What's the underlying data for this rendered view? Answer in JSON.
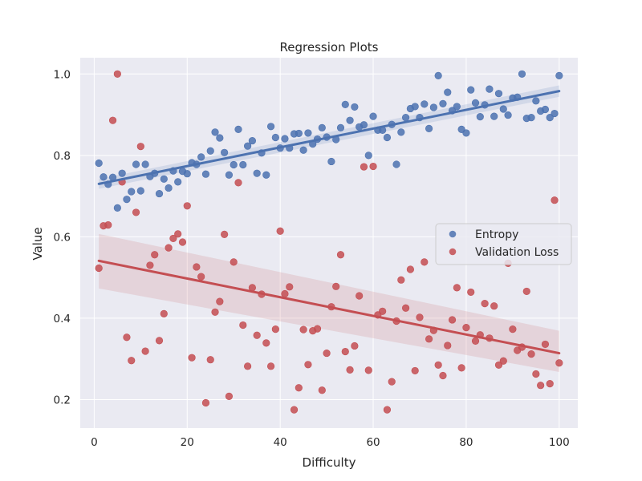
{
  "chart_data": {
    "type": "scatter",
    "title": "Regression Plots",
    "xlabel": "Difficulty",
    "ylabel": "Value",
    "xlim": [
      -3,
      104
    ],
    "ylim": [
      0.13,
      1.04
    ],
    "xticks": [
      0,
      20,
      40,
      60,
      80,
      100
    ],
    "yticks": [
      0.2,
      0.4,
      0.6,
      0.8,
      1.0
    ],
    "xtick_labels": [
      "0",
      "20",
      "40",
      "60",
      "80",
      "100"
    ],
    "ytick_labels": [
      "0.2",
      "0.4",
      "0.6",
      "0.8",
      "1.0"
    ],
    "grid": true,
    "legend_position": "center-right",
    "colors": {
      "background": "#eaeaf2",
      "grid": "#ffffff",
      "entropy": "#4c72b0",
      "validation_loss": "#c44e52"
    },
    "series": [
      {
        "name": "Entropy",
        "color": "#4c72b0",
        "regression": {
          "x": [
            1,
            100
          ],
          "y": [
            0.73,
            0.958
          ]
        },
        "band": {
          "lower": [
            0.718,
            0.944
          ],
          "upper": [
            0.742,
            0.972
          ]
        },
        "x": [
          1,
          2,
          3,
          4,
          5,
          6,
          7,
          8,
          9,
          10,
          11,
          12,
          13,
          14,
          15,
          16,
          17,
          18,
          19,
          20,
          21,
          22,
          23,
          24,
          25,
          26,
          27,
          28,
          29,
          30,
          31,
          32,
          33,
          34,
          35,
          36,
          37,
          38,
          39,
          40,
          41,
          42,
          43,
          44,
          45,
          46,
          47,
          48,
          49,
          50,
          51,
          52,
          53,
          54,
          55,
          56,
          57,
          58,
          59,
          60,
          61,
          62,
          63,
          64,
          65,
          66,
          67,
          68,
          69,
          70,
          71,
          72,
          73,
          74,
          75,
          76,
          77,
          78,
          79,
          80,
          81,
          82,
          83,
          84,
          85,
          86,
          87,
          88,
          89,
          90,
          91,
          92,
          93,
          94,
          95,
          96,
          97,
          98,
          99,
          100
        ],
        "y": [
          0.781,
          0.747,
          0.729,
          0.746,
          0.671,
          0.756,
          0.692,
          0.711,
          0.778,
          0.713,
          0.778,
          0.748,
          0.756,
          0.706,
          0.742,
          0.72,
          0.762,
          0.735,
          0.761,
          0.755,
          0.782,
          0.778,
          0.796,
          0.754,
          0.811,
          0.857,
          0.843,
          0.807,
          0.752,
          0.777,
          0.864,
          0.777,
          0.823,
          0.836,
          0.756,
          0.806,
          0.752,
          0.871,
          0.844,
          0.818,
          0.841,
          0.818,
          0.853,
          0.854,
          0.813,
          0.855,
          0.828,
          0.84,
          0.868,
          0.845,
          0.785,
          0.839,
          0.868,
          0.925,
          0.886,
          0.919,
          0.87,
          0.875,
          0.8,
          0.896,
          0.862,
          0.862,
          0.844,
          0.876,
          0.778,
          0.857,
          0.893,
          0.915,
          0.92,
          0.893,
          0.926,
          0.866,
          0.918,
          0.996,
          0.927,
          0.955,
          0.91,
          0.92,
          0.864,
          0.855,
          0.961,
          0.929,
          0.895,
          0.924,
          0.963,
          0.896,
          0.952,
          0.914,
          0.899,
          0.941,
          0.943,
          1.0,
          0.891,
          0.893,
          0.934,
          0.909,
          0.913,
          0.893,
          0.903,
          0.996
        ]
      },
      {
        "name": "Validation Loss",
        "color": "#c44e52",
        "regression": {
          "x": [
            1,
            100
          ],
          "y": [
            0.541,
            0.314
          ]
        },
        "band": {
          "lower": [
            0.473,
            0.268
          ],
          "upper": [
            0.607,
            0.369
          ]
        },
        "x": [
          1,
          2,
          3,
          4,
          5,
          6,
          7,
          8,
          9,
          10,
          11,
          12,
          13,
          14,
          15,
          16,
          17,
          18,
          19,
          20,
          21,
          22,
          23,
          24,
          25,
          26,
          27,
          28,
          29,
          30,
          31,
          32,
          33,
          34,
          35,
          36,
          37,
          38,
          39,
          40,
          41,
          42,
          43,
          44,
          45,
          46,
          47,
          48,
          49,
          50,
          51,
          52,
          53,
          54,
          55,
          56,
          57,
          58,
          59,
          60,
          61,
          62,
          63,
          64,
          65,
          66,
          67,
          68,
          69,
          70,
          71,
          72,
          73,
          74,
          75,
          76,
          77,
          78,
          79,
          80,
          81,
          82,
          83,
          84,
          85,
          86,
          87,
          88,
          89,
          90,
          91,
          92,
          93,
          94,
          95,
          96,
          97,
          98,
          99,
          100
        ],
        "y": [
          0.523,
          0.627,
          0.629,
          0.886,
          1.0,
          0.735,
          0.353,
          0.296,
          0.66,
          0.822,
          0.319,
          0.53,
          0.556,
          0.345,
          0.411,
          0.573,
          0.596,
          0.607,
          0.587,
          0.676,
          0.303,
          0.526,
          0.502,
          0.192,
          0.298,
          0.415,
          0.441,
          0.606,
          0.208,
          0.538,
          0.733,
          0.383,
          0.282,
          0.475,
          0.358,
          0.459,
          0.339,
          0.282,
          0.373,
          0.614,
          0.46,
          0.477,
          0.175,
          0.229,
          0.372,
          0.286,
          0.369,
          0.374,
          0.223,
          0.314,
          0.428,
          0.478,
          0.556,
          0.318,
          0.273,
          0.332,
          0.455,
          0.772,
          0.272,
          0.773,
          0.408,
          0.417,
          0.175,
          0.244,
          0.393,
          0.494,
          0.425,
          0.52,
          0.271,
          0.402,
          0.538,
          0.349,
          0.37,
          0.285,
          0.259,
          0.333,
          0.396,
          0.475,
          0.278,
          0.377,
          0.464,
          0.344,
          0.359,
          0.436,
          0.351,
          0.43,
          0.285,
          0.295,
          0.535,
          0.373,
          0.321,
          0.329,
          0.466,
          0.312,
          0.263,
          0.235,
          0.336,
          0.239,
          0.69,
          0.29
        ]
      }
    ]
  }
}
